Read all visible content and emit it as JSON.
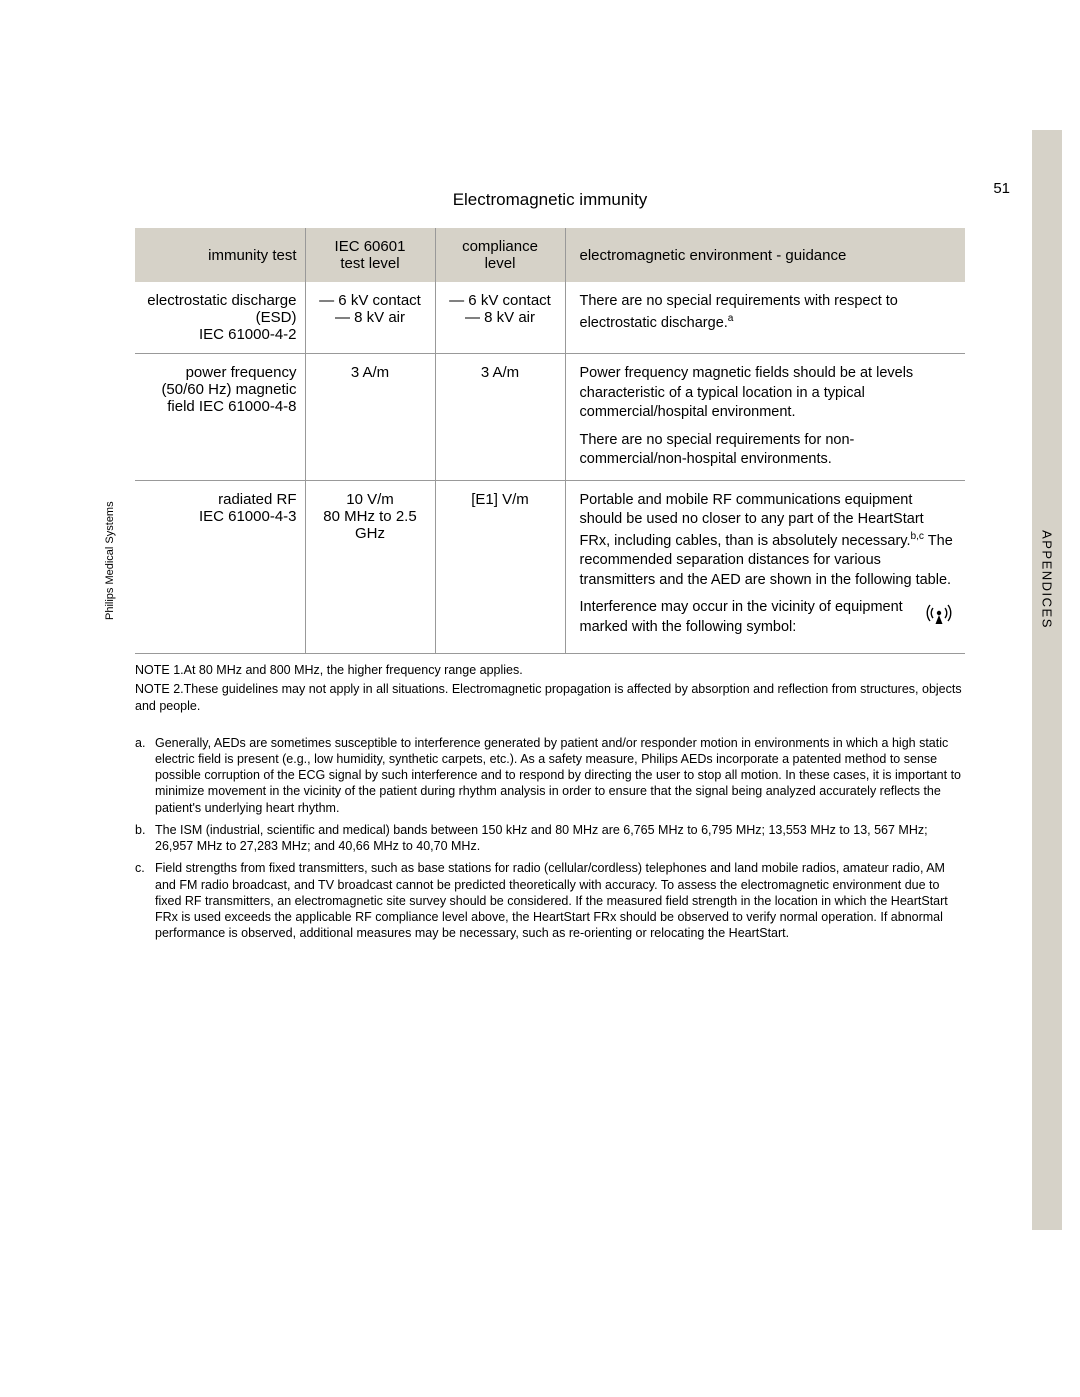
{
  "page_number": "51",
  "side_tab": "APPENDICES",
  "left_vertical": "Philips Medical Systems",
  "table_title": "Electromagnetic immunity",
  "columns": {
    "c1": "immunity test",
    "c2": "IEC 60601 test level",
    "c3": "compliance level",
    "c4": "electromagnetic environment - guidance"
  },
  "rows": [
    {
      "test": "electrostatic discharge (ESD)<br>IEC 61000-4-2",
      "level": "<span class=\"contact-dash\">—</span> 6 kV contact<br><span class=\"contact-dash\">—</span> 8 kV air",
      "compliance": "<span class=\"contact-dash\">—</span> 6 kV contact<br><span class=\"contact-dash\">—</span> 8 kV air",
      "guidance": "<p>There are no special requirements with respect to electrostatic discharge.<sup>a</sup></p>"
    },
    {
      "test": "power frequency (50/60 Hz) magnetic field IEC 61000-4-8",
      "level": "3 A/m",
      "compliance": "3 A/m",
      "guidance": "<p>Power frequency magnetic fields should be at levels characteristic of a typical location in a typical commercial/hospital environment.</p><p>There are no special requirements for non-commercial/non-hospital environments.</p>"
    },
    {
      "test": "radiated RF<br>IEC 61000-4-3",
      "level": "10 V/m<br>80 MHz to 2.5 GHz",
      "compliance": "[E1] V/m",
      "guidance_rf": {
        "p1": "Portable and mobile RF communications equipment should be used no closer to any part of the HeartStart FRx, including cables, than is absolutely necessary.<sup>b,c</sup> The recommended separation distances for various transmitters and the AED are shown in the following table.",
        "p2": "Interference may occur in the vicinity of equipment marked with the following symbol:"
      }
    }
  ],
  "notes": [
    "NOTE 1.At 80 MHz and 800 MHz, the higher frequency range applies.",
    "NOTE 2.These guidelines may not apply in all situations. Electromagnetic propagation is affected by absorption and reflection from structures, objects and people."
  ],
  "footnotes": [
    {
      "marker": "a.",
      "body": "Generally, AEDs are sometimes susceptible to interference generated by patient and/or responder motion in environments in which a high static electric field is present (e.g., low humidity, synthetic carpets, etc.). As a safety measure, Philips AEDs incorporate a patented method to sense possible corruption of the ECG signal by such interference and to respond by directing the user to stop all motion. In these cases, it is important to minimize movement in the vicinity of the patient during rhythm analysis in order to ensure that the signal being analyzed accurately reflects the patient's underlying heart rhythm."
    },
    {
      "marker": "b.",
      "body": "The ISM (industrial, scientific and medical) bands between 150 kHz and 80 MHz are 6,765 MHz to 6,795 MHz; 13,553 MHz to 13, 567 MHz; 26,957 MHz to 27,283 MHz; and 40,66 MHz to 40,70 MHz."
    },
    {
      "marker": "c.",
      "body": "Field strengths from fixed transmitters, such as base stations for radio (cellular/cordless) telephones and land mobile radios, amateur radio, AM and FM radio broadcast, and TV broadcast cannot be predicted theoretically with accuracy. To assess the electromagnetic environment due to fixed RF transmitters, an electromagnetic site survey should be considered. If the measured field strength in the location in which the HeartStart FRx is used exceeds the applicable RF compliance level above, the HeartStart FRx should be observed to verify normal operation. If abnormal performance is observed, additional measures may be necessary, such as re-orienting or relocating the HeartStart."
    }
  ],
  "colors": {
    "tab_bg": "#d6d2c8",
    "header_bg": "#d6d2c8",
    "border": "#999999"
  }
}
